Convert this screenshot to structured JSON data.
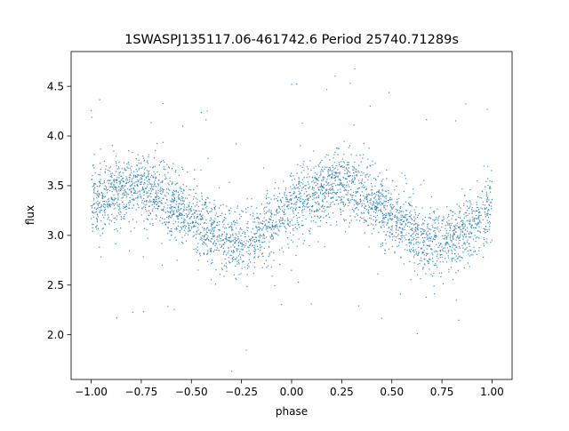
{
  "chart_data": {
    "type": "scatter",
    "title": "1SWASPJ135117.06-461742.6 Period 25740.71289s",
    "xlabel": "phase",
    "ylabel": "flux",
    "xlim": [
      -1.1,
      1.1
    ],
    "ylim": [
      1.55,
      4.85
    ],
    "xticks": [
      -1.0,
      -0.75,
      -0.5,
      -0.25,
      0.0,
      0.25,
      0.5,
      0.75,
      1.0
    ],
    "xtick_labels": [
      "−1.00",
      "−0.75",
      "−0.50",
      "−0.25",
      "0.00",
      "0.25",
      "0.50",
      "0.75",
      "1.00"
    ],
    "yticks": [
      2.0,
      2.5,
      3.0,
      3.5,
      4.0,
      4.5
    ],
    "ytick_labels": [
      "2.0",
      "2.5",
      "3.0",
      "3.5",
      "4.0",
      "4.5"
    ],
    "grid": false,
    "legend": "none",
    "marker_color": "#1f77b4",
    "series": [
      {
        "x": [
          -1.0,
          -0.9,
          -0.8,
          -0.75,
          -0.7,
          -0.6,
          -0.5,
          -0.4,
          -0.3,
          -0.25,
          -0.2,
          -0.1,
          0.0,
          0.1,
          0.2,
          0.25,
          0.3,
          0.4,
          0.5,
          0.6,
          0.7,
          0.75,
          0.8,
          0.9,
          1.0
        ],
        "y": [
          3.3,
          3.42,
          3.5,
          3.5,
          3.47,
          3.35,
          3.18,
          3.02,
          2.93,
          2.92,
          2.95,
          3.1,
          3.3,
          3.42,
          3.5,
          3.5,
          3.47,
          3.35,
          3.18,
          3.02,
          2.93,
          2.92,
          2.95,
          3.1,
          3.3
        ]
      }
    ]
  }
}
